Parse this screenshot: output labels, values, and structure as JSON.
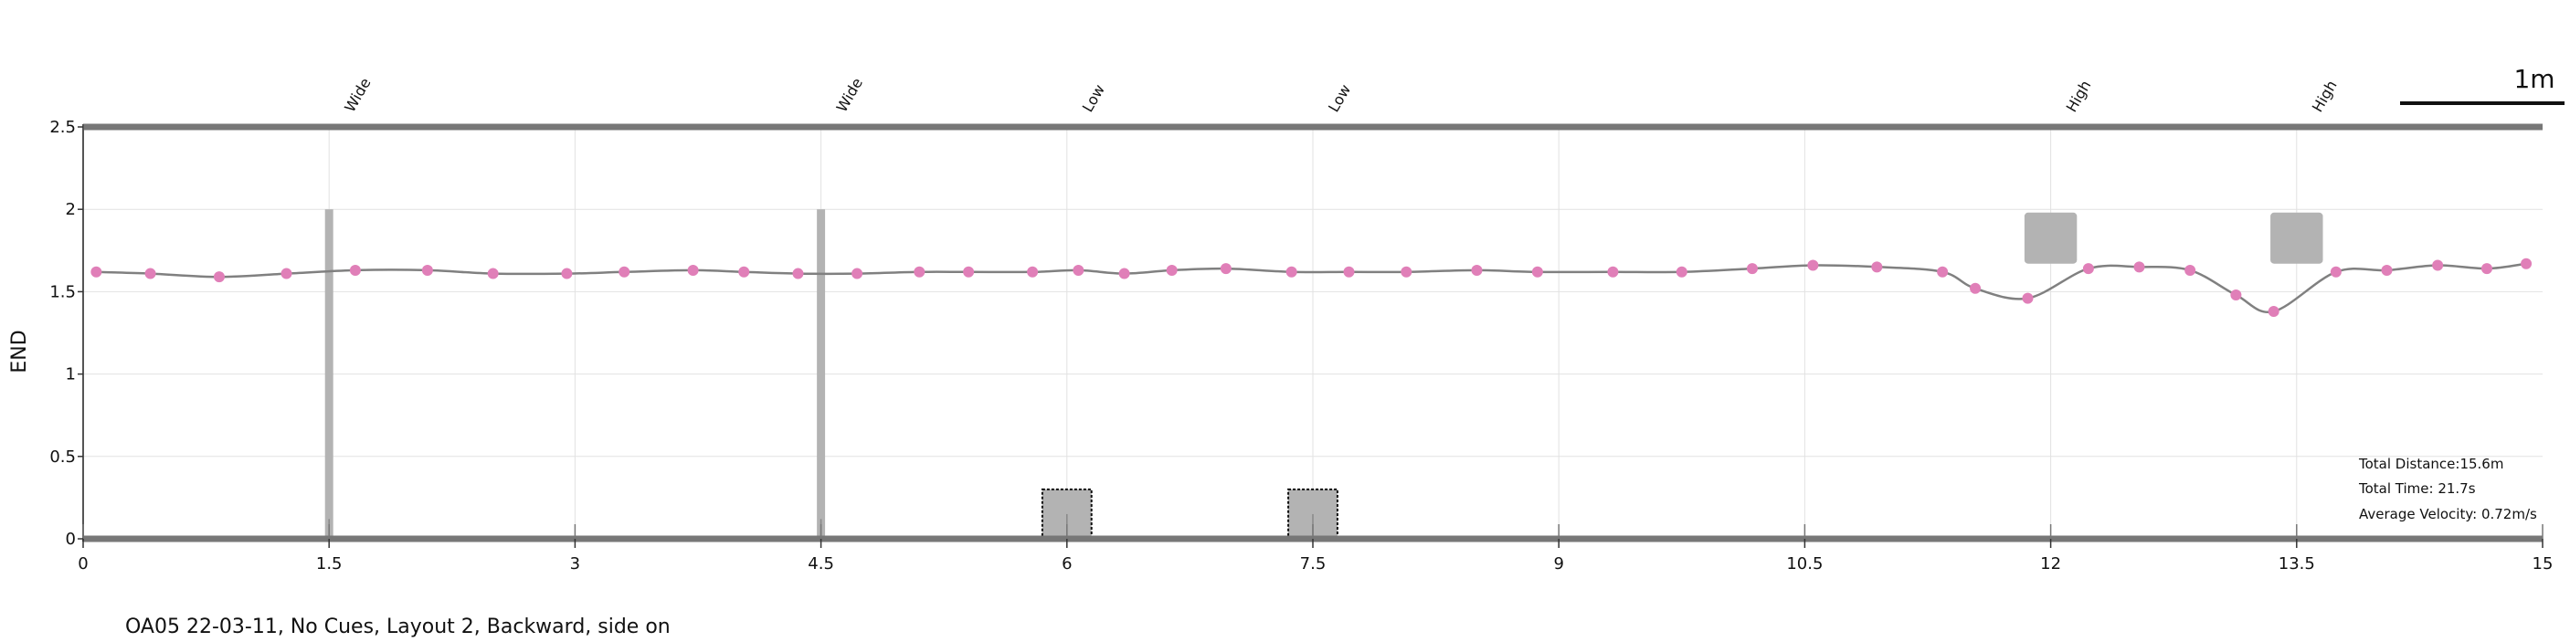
{
  "chart_data": {
    "type": "line",
    "ylabel": "END",
    "xlim": [
      0,
      15
    ],
    "ylim": [
      0,
      2.5
    ],
    "x_ticks": [
      0,
      1.5,
      3,
      4.5,
      6,
      7.5,
      9,
      10.5,
      12,
      13.5,
      15
    ],
    "x_tick_labels": [
      "0",
      "1.5",
      "3",
      "4.5",
      "6",
      "7.5",
      "9",
      "10.5",
      "12",
      "13.5",
      "15"
    ],
    "y_ticks": [
      0,
      0.5,
      1,
      1.5,
      2,
      2.5
    ],
    "y_tick_labels": [
      "0",
      "0.5",
      "1",
      "1.5",
      "2",
      "2.5"
    ],
    "grid": true,
    "series": [
      {
        "color": "#808080",
        "marker_color": "#e07fb8",
        "points": [
          [
            0.08,
            1.62
          ],
          [
            0.41,
            1.61
          ],
          [
            0.83,
            1.59
          ],
          [
            1.24,
            1.61
          ],
          [
            1.66,
            1.63
          ],
          [
            2.1,
            1.63
          ],
          [
            2.5,
            1.61
          ],
          [
            2.95,
            1.61
          ],
          [
            3.3,
            1.62
          ],
          [
            3.72,
            1.63
          ],
          [
            4.03,
            1.62
          ],
          [
            4.36,
            1.61
          ],
          [
            4.72,
            1.61
          ],
          [
            5.1,
            1.62
          ],
          [
            5.4,
            1.62
          ],
          [
            5.79,
            1.62
          ],
          [
            6.07,
            1.63
          ],
          [
            6.35,
            1.61
          ],
          [
            6.64,
            1.63
          ],
          [
            6.97,
            1.64
          ],
          [
            7.37,
            1.62
          ],
          [
            7.72,
            1.62
          ],
          [
            8.07,
            1.62
          ],
          [
            8.5,
            1.63
          ],
          [
            8.87,
            1.62
          ],
          [
            9.33,
            1.62
          ],
          [
            9.75,
            1.62
          ],
          [
            10.18,
            1.64
          ],
          [
            10.55,
            1.66
          ],
          [
            10.94,
            1.65
          ],
          [
            11.34,
            1.62
          ],
          [
            11.54,
            1.52
          ],
          [
            11.86,
            1.46
          ],
          [
            12.23,
            1.64
          ],
          [
            12.54,
            1.65
          ],
          [
            12.85,
            1.63
          ],
          [
            13.13,
            1.48
          ],
          [
            13.36,
            1.38
          ],
          [
            13.74,
            1.62
          ],
          [
            14.05,
            1.63
          ],
          [
            14.36,
            1.66
          ],
          [
            14.66,
            1.64
          ],
          [
            14.9,
            1.67
          ]
        ]
      }
    ],
    "obstacles": [
      {
        "label": "Wide",
        "x": 1.5,
        "kind": "post",
        "y_bottom": 0,
        "y_top": 2.0,
        "width": 0.05
      },
      {
        "label": "Wide",
        "x": 4.5,
        "kind": "post",
        "y_bottom": 0,
        "y_top": 2.0,
        "width": 0.05
      },
      {
        "label": "Low",
        "x": 6.0,
        "kind": "block",
        "y_bottom": 0,
        "y_top": 0.3,
        "width": 0.3
      },
      {
        "label": "Low",
        "x": 7.5,
        "kind": "block",
        "y_bottom": 0,
        "y_top": 0.3,
        "width": 0.3
      },
      {
        "label": "High",
        "x": 12.0,
        "kind": "overhead",
        "y_bottom": 1.67,
        "y_top": 1.98,
        "width": 0.32
      },
      {
        "label": "High",
        "x": 13.5,
        "kind": "overhead",
        "y_bottom": 1.67,
        "y_top": 1.98,
        "width": 0.32
      }
    ],
    "stats": {
      "distance": "Total Distance:15.6m",
      "time": "Total Time: 21.7s",
      "velocity": "Average Velocity: 0.72m/s"
    },
    "scale_bar": {
      "label": "1m",
      "length_m": 1.0
    },
    "caption": "OA05 22-03-11, No Cues, Layout 2, Backward, side on"
  }
}
